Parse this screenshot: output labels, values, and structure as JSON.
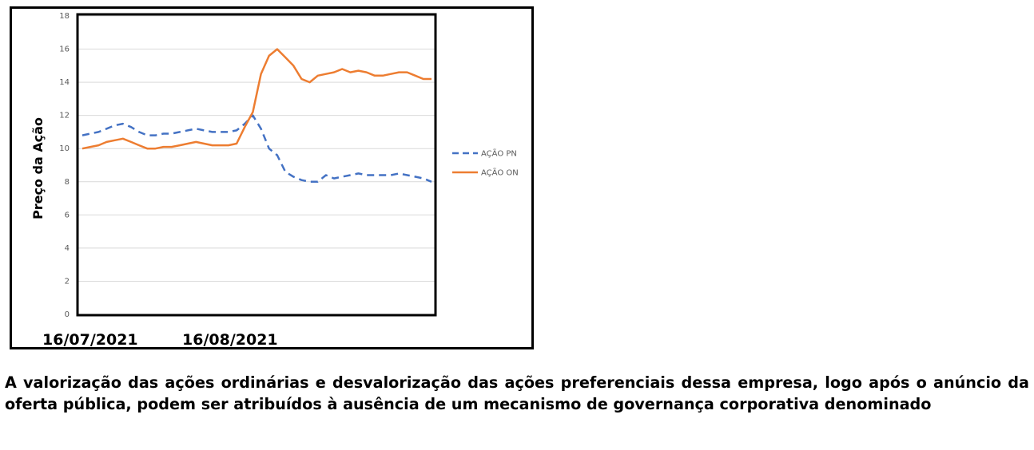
{
  "chart_data": {
    "type": "line",
    "ylabel": "Preço da Ação",
    "ylim": [
      0,
      18
    ],
    "yticks": [
      0,
      2,
      4,
      6,
      8,
      10,
      12,
      14,
      16,
      18
    ],
    "grid": true,
    "legend_position": "right",
    "x_date_labels": [
      "16/07/2021",
      "16/08/2021"
    ],
    "series": [
      {
        "name": "AÇÃO PN",
        "color": "#4472C4",
        "dash": "dashed",
        "values": [
          10.8,
          10.9,
          11.0,
          11.2,
          11.4,
          11.5,
          11.3,
          11.0,
          10.8,
          10.8,
          10.9,
          10.9,
          11.0,
          11.1,
          11.2,
          11.1,
          11.0,
          11.0,
          11.0,
          11.1,
          11.5,
          12.0,
          11.2,
          10.0,
          9.6,
          8.6,
          8.3,
          8.1,
          8.0,
          8.0,
          8.4,
          8.2,
          8.3,
          8.4,
          8.5,
          8.4,
          8.4,
          8.4,
          8.4,
          8.5,
          8.4,
          8.3,
          8.2,
          8.0
        ]
      },
      {
        "name": "AÇÃO ON",
        "color": "#ED7D31",
        "dash": "solid",
        "values": [
          10.0,
          10.1,
          10.2,
          10.4,
          10.5,
          10.6,
          10.4,
          10.2,
          10.0,
          10.0,
          10.1,
          10.1,
          10.2,
          10.3,
          10.4,
          10.3,
          10.2,
          10.2,
          10.2,
          10.3,
          11.3,
          12.2,
          14.5,
          15.6,
          16.0,
          15.5,
          15.0,
          14.2,
          14.0,
          14.4,
          14.5,
          14.6,
          14.8,
          14.6,
          14.7,
          14.6,
          14.4,
          14.4,
          14.5,
          14.6,
          14.6,
          14.4,
          14.2,
          14.2
        ]
      }
    ]
  },
  "caption": "A valorização das ações ordinárias e desvalorização das ações preferenciais dessa empresa, logo após o anúncio da oferta pública, podem ser atribuídos à ausência de um mecanismo  de governança corporativa denominado"
}
